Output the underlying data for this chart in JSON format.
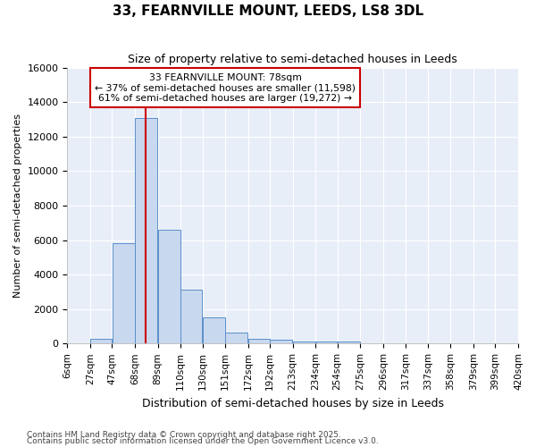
{
  "title": "33, FEARNVILLE MOUNT, LEEDS, LS8 3DL",
  "subtitle": "Size of property relative to semi-detached houses in Leeds",
  "xlabel": "Distribution of semi-detached houses by size in Leeds",
  "ylabel": "Number of semi-detached properties",
  "annotation_line1": "33 FEARNVILLE MOUNT: 78sqm",
  "annotation_line2": "← 37% of semi-detached houses are smaller (11,598)",
  "annotation_line3": "61% of semi-detached houses are larger (19,272) →",
  "footnote1": "Contains HM Land Registry data © Crown copyright and database right 2025.",
  "footnote2": "Contains public sector information licensed under the Open Government Licence v3.0.",
  "property_size": 78,
  "bar_edges": [
    6,
    27,
    47,
    68,
    89,
    110,
    130,
    151,
    172,
    192,
    213,
    234,
    254,
    275,
    296,
    317,
    337,
    358,
    379,
    399,
    420
  ],
  "bar_heights": [
    0,
    300,
    5800,
    13100,
    6600,
    3100,
    1500,
    620,
    280,
    200,
    100,
    100,
    100,
    40,
    10,
    5,
    3,
    2,
    1,
    1
  ],
  "bar_color": "#c8d8ee",
  "bar_edge_color": "#5a8fcc",
  "red_line_color": "#cc0000",
  "background_color": "#ffffff",
  "plot_bg_color": "#e8eef8",
  "grid_color": "#ffffff",
  "annotation_box_color": "#ffffff",
  "annotation_box_edge": "#cc0000",
  "ylim": [
    0,
    16000
  ],
  "yticks": [
    0,
    2000,
    4000,
    6000,
    8000,
    10000,
    12000,
    14000,
    16000
  ]
}
